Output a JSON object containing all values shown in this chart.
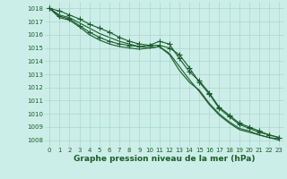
{
  "background_color": "#cceee8",
  "grid_color": "#aad8cc",
  "line_color": "#1a5c2a",
  "xlabel": "Graphe pression niveau de la mer (hPa)",
  "xlabel_fontsize": 6.5,
  "xlabel_color": "#1a5c2a",
  "ylabel_ticks": [
    1008,
    1009,
    1010,
    1011,
    1012,
    1013,
    1014,
    1015,
    1016,
    1017,
    1018
  ],
  "xlim": [
    -0.5,
    23.5
  ],
  "ylim": [
    1007.5,
    1018.5
  ],
  "hours": [
    0,
    1,
    2,
    3,
    4,
    5,
    6,
    7,
    8,
    9,
    10,
    11,
    12,
    13,
    14,
    15,
    16,
    17,
    18,
    19,
    20,
    21,
    22,
    23
  ],
  "series": [
    [
      1018.0,
      1017.8,
      1017.5,
      1017.2,
      1016.8,
      1016.5,
      1016.2,
      1015.8,
      1015.5,
      1015.3,
      1015.2,
      1015.2,
      1015.0,
      1014.5,
      1013.5,
      1012.4,
      1011.5,
      1010.4,
      1009.8,
      1009.2,
      1008.9,
      1008.6,
      1008.4,
      1008.2
    ],
    [
      1018.0,
      1017.5,
      1017.3,
      1016.9,
      1016.5,
      1016.1,
      1015.8,
      1015.5,
      1015.3,
      1015.1,
      1015.0,
      1015.1,
      1014.6,
      1013.6,
      1012.6,
      1011.7,
      1010.7,
      1009.9,
      1009.3,
      1008.8,
      1008.6,
      1008.4,
      1008.2,
      1008.1
    ],
    [
      1018.0,
      1017.4,
      1017.2,
      1016.7,
      1016.2,
      1015.8,
      1015.5,
      1015.3,
      1015.2,
      1015.1,
      1015.2,
      1015.5,
      1015.3,
      1014.2,
      1013.2,
      1012.5,
      1011.6,
      1010.5,
      1009.9,
      1009.3,
      1009.0,
      1008.7,
      1008.4,
      1008.2
    ],
    [
      1018.0,
      1017.3,
      1017.1,
      1016.6,
      1016.0,
      1015.6,
      1015.3,
      1015.1,
      1015.0,
      1014.9,
      1015.0,
      1015.1,
      1014.5,
      1013.3,
      1012.4,
      1011.8,
      1010.8,
      1010.0,
      1009.4,
      1008.9,
      1008.7,
      1008.4,
      1008.2,
      1008.0
    ]
  ],
  "marker_series": [
    0,
    2
  ],
  "marker": "+",
  "marker_size": 4,
  "linewidth": 0.8,
  "tick_fontsize": 5.0,
  "tick_color": "#1a5c2a",
  "figsize": [
    3.2,
    2.0
  ],
  "dpi": 100
}
